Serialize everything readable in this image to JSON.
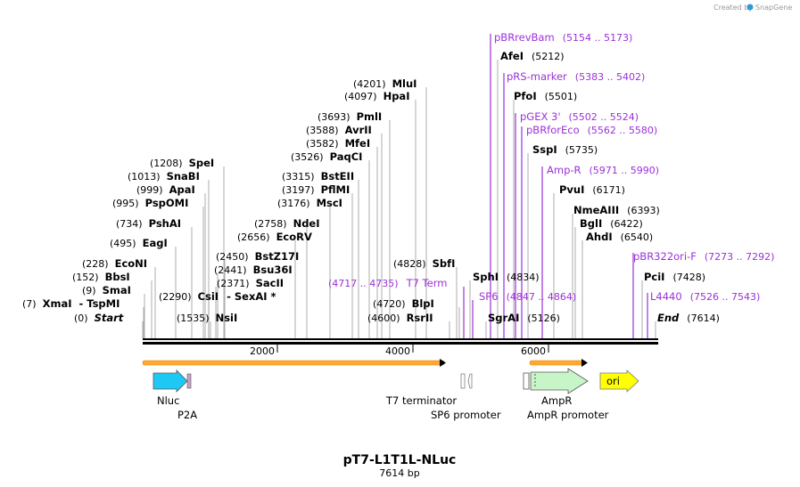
{
  "credit": {
    "prefix": "Created by",
    "brand": "SnapGene"
  },
  "plasmid": {
    "name": "pT7-L1T1L-NLuc",
    "length": "7614 bp"
  },
  "axis": {
    "ticks": [
      "2000",
      "4000",
      "6000"
    ]
  },
  "sites": [
    {
      "pos": "(0)",
      "name": "Start"
    },
    {
      "pos": "(7)",
      "name": "XmaI  - TspMI"
    },
    {
      "pos": "(9)",
      "name": "SmaI"
    },
    {
      "pos": "(152)",
      "name": "BbsI"
    },
    {
      "pos": "(228)",
      "name": "EcoNI"
    },
    {
      "pos": "(495)",
      "name": "EagI"
    },
    {
      "pos": "(734)",
      "name": "PshAI"
    },
    {
      "pos": "(995)",
      "name": "PspOMI"
    },
    {
      "pos": "(999)",
      "name": "ApaI"
    },
    {
      "pos": "(1013)",
      "name": "SnaBI"
    },
    {
      "pos": "(1208)",
      "name": "SpeI"
    },
    {
      "pos": "(1535)",
      "name": "NsiI"
    },
    {
      "pos": "(2290)",
      "name": "CsiI",
      "extra": "- SexAI *"
    },
    {
      "pos": "(2371)",
      "name": "SacII"
    },
    {
      "pos": "(2441)",
      "name": "Bsu36I"
    },
    {
      "pos": "(2450)",
      "name": "BstZ17I"
    },
    {
      "pos": "(2656)",
      "name": "EcoRV"
    },
    {
      "pos": "(2758)",
      "name": "NdeI"
    },
    {
      "pos": "(3176)",
      "name": "MscI"
    },
    {
      "pos": "(3197)",
      "name": "PflMI"
    },
    {
      "pos": "(3315)",
      "name": "BstEII"
    },
    {
      "pos": "(3526)",
      "name": "PaqCI"
    },
    {
      "pos": "(3582)",
      "name": "MfeI"
    },
    {
      "pos": "(3588)",
      "name": "AvrII"
    },
    {
      "pos": "(3693)",
      "name": "PmlI"
    },
    {
      "pos": "(4097)",
      "name": "HpaI"
    },
    {
      "pos": "(4201)",
      "name": "MluI"
    },
    {
      "pos": "(4600)",
      "name": "RsrII"
    },
    {
      "pos": "(4720)",
      "name": "BlpI"
    },
    {
      "pos": "(4828)",
      "name": "SbfI"
    },
    {
      "pos": "(4834)",
      "name": "SphI"
    },
    {
      "pos": "(5126)",
      "name": "SgrAI"
    },
    {
      "pos": "(5212)",
      "name": "AfeI"
    },
    {
      "pos": "(5501)",
      "name": "PfoI"
    },
    {
      "pos": "(5735)",
      "name": "SspI"
    },
    {
      "pos": "(6171)",
      "name": "PvuI"
    },
    {
      "pos": "(6393)",
      "name": "NmeAIII"
    },
    {
      "pos": "(6422)",
      "name": "BglI"
    },
    {
      "pos": "(6540)",
      "name": "AhdI"
    },
    {
      "pos": "(7428)",
      "name": "PciI"
    },
    {
      "pos": "(7614)",
      "name": "End"
    }
  ],
  "primers": [
    {
      "name": "pBRrevBam",
      "range": "(5154 .. 5173)"
    },
    {
      "name": "pRS-marker",
      "range": "(5383 .. 5402)"
    },
    {
      "name": "pGEX 3'",
      "range": "(5502 .. 5524)"
    },
    {
      "name": "pBRforEco",
      "range": "(5562 .. 5580)"
    },
    {
      "name": "Amp-R",
      "range": "(5971 .. 5990)"
    },
    {
      "name": "pBR322ori-F",
      "range": "(7273 .. 7292)"
    },
    {
      "name": "L4440",
      "range": "(7526 .. 7543)"
    },
    {
      "name": "T7 Term",
      "range": "(4717 .. 4735)"
    },
    {
      "name": "SP6",
      "range": "(4847 .. 4864)"
    }
  ],
  "features": [
    {
      "name": "Nluc"
    },
    {
      "name": "P2A"
    },
    {
      "name": "T7 terminator"
    },
    {
      "name": "SP6 promoter"
    },
    {
      "name": "AmpR"
    },
    {
      "name": "AmpR promoter"
    },
    {
      "name": "ori"
    }
  ],
  "colors": {
    "primer": "#9b30d9",
    "nluc": "#1ec8f5",
    "ampr": "#c8f5c8",
    "ori": "#ffff00",
    "orf": "#ffa832"
  }
}
